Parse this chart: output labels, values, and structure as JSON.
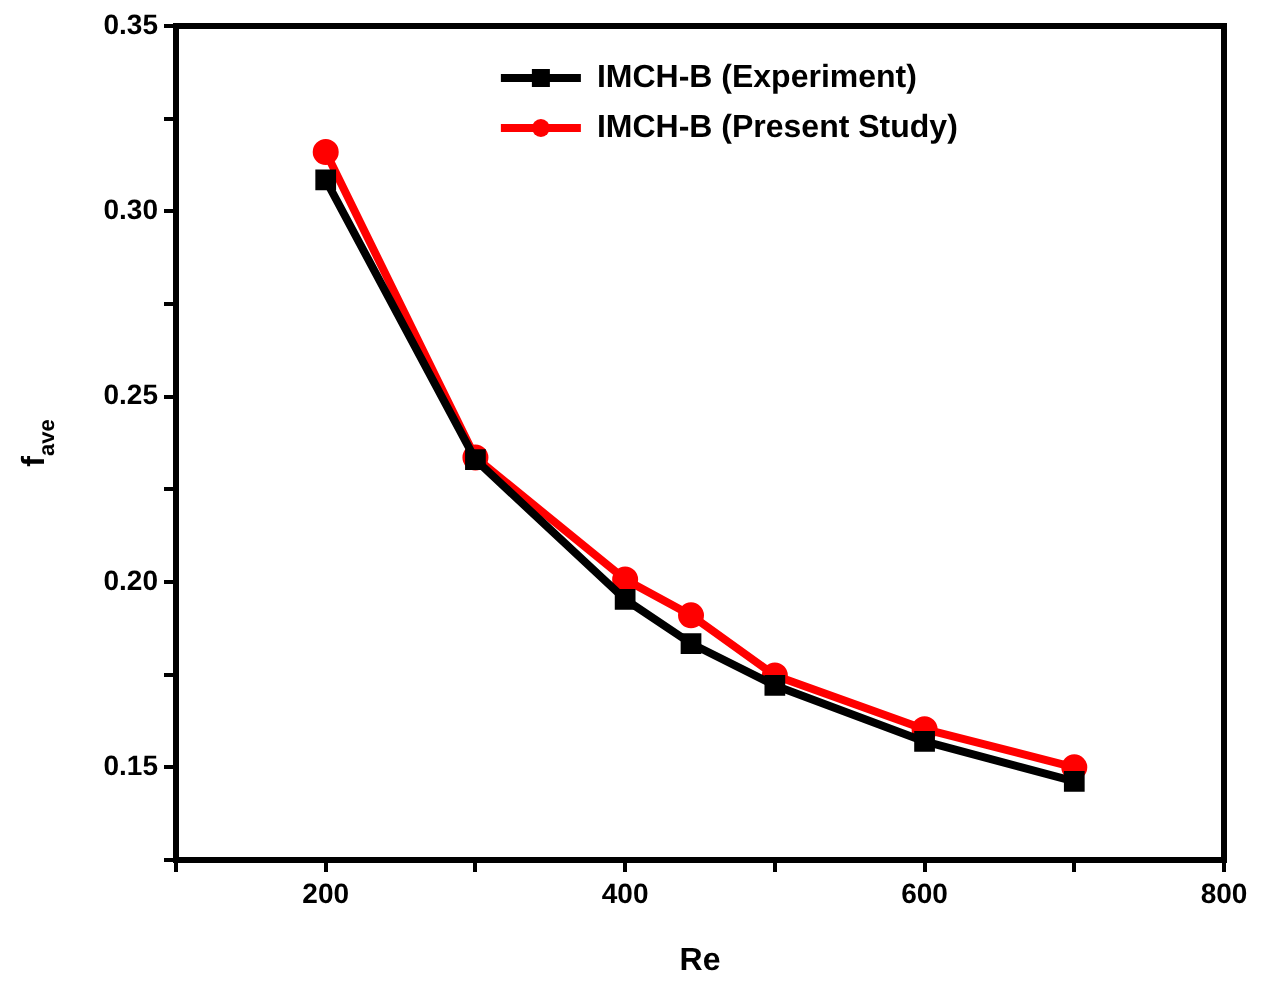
{
  "chart_data": {
    "type": "line",
    "xlabel": "Re",
    "ylabel": "f$_{ave}$",
    "xlim": [
      100,
      800
    ],
    "xticks": [
      {
        "value": 100,
        "label": null
      },
      200,
      {
        "value": 300,
        "label": null
      },
      400,
      {
        "value": 500,
        "label": null
      },
      600,
      {
        "value": 700,
        "label": null
      },
      800
    ],
    "ylim": [
      0.125,
      0.35
    ],
    "yticks": [
      {
        "value": 0.125,
        "label": null
      },
      0.15,
      {
        "value": 0.175,
        "label": null
      },
      {
        "value": 0.2,
        "label": "0.20"
      },
      {
        "value": 0.225,
        "label": null
      },
      0.25,
      {
        "value": 0.275,
        "label": null
      },
      {
        "value": 0.3,
        "label": "0.30"
      },
      {
        "value": 0.325,
        "label": null
      },
      0.35
    ],
    "grid": false,
    "legend": "top right",
    "line_style": "solid",
    "series": [
      {
        "name": "IMCH-B (Experiment)",
        "color": "#000000",
        "marker": "square",
        "x": [
          200,
          300,
          400,
          444,
          500,
          600,
          700
        ],
        "values": [
          0.3085,
          0.233,
          0.1953,
          0.1834,
          0.1721,
          0.157,
          0.1462
        ]
      },
      {
        "name": "IMCH-B (Present Study)",
        "color": "#ff0000",
        "marker": "circle",
        "x": [
          200,
          300,
          400,
          444,
          500,
          600,
          700
        ],
        "values": [
          0.316,
          0.2336,
          0.2007,
          0.191,
          0.1748,
          0.1603,
          0.15
        ]
      }
    ]
  }
}
